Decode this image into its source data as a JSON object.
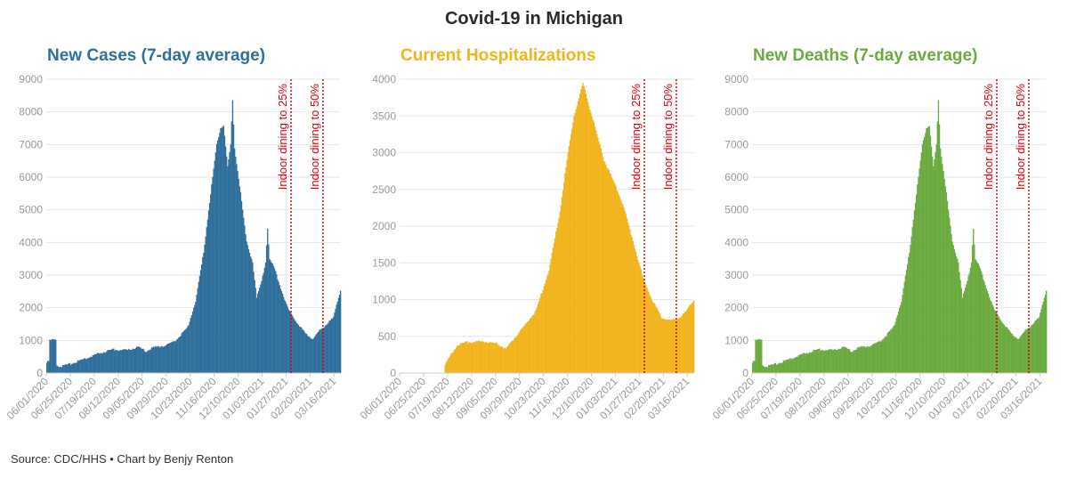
{
  "title": "Covid-19 in Michigan",
  "source": "Source: CDC/HHS • Chart by Benjy Renton",
  "x_ticks": [
    "06/01/2020",
    "06/25/2020",
    "07/19/2020",
    "08/12/2020",
    "09/05/2020",
    "09/29/2020",
    "10/23/2020",
    "11/16/2020",
    "12/10/2020",
    "01/03/2021",
    "01/27/2021",
    "02/20/2021",
    "03/16/2021"
  ],
  "annotations": [
    {
      "label": "Indoor dining to 25%",
      "date": "02/01/2021"
    },
    {
      "label": "Indoor dining to 50%",
      "date": "03/05/2021"
    }
  ],
  "colors": {
    "cases": "#2f6f9c",
    "hosp": "#f2b41d",
    "deaths": "#6aaa3f",
    "annotation": "#e0000b"
  },
  "chart_data": [
    {
      "type": "bar",
      "title": "New Cases (7-day average)",
      "ylim": [
        0,
        9000
      ],
      "yticks": [
        0,
        1000,
        2000,
        3000,
        4000,
        5000,
        6000,
        7000,
        8000,
        9000
      ],
      "x_start": "06/01/2020",
      "x_end": "03/22/2021",
      "grid": true,
      "keypoints": [
        [
          "06/01/2020",
          350
        ],
        [
          "06/03/2020",
          350
        ],
        [
          "06/04/2020",
          1000
        ],
        [
          "06/10/2020",
          1030
        ],
        [
          "06/11/2020",
          250
        ],
        [
          "06/15/2020",
          200
        ],
        [
          "06/25/2020",
          280
        ],
        [
          "07/10/2020",
          450
        ],
        [
          "07/25/2020",
          620
        ],
        [
          "08/05/2020",
          720
        ],
        [
          "08/20/2020",
          700
        ],
        [
          "09/01/2020",
          800
        ],
        [
          "09/08/2020",
          650
        ],
        [
          "09/15/2020",
          780
        ],
        [
          "09/29/2020",
          850
        ],
        [
          "10/08/2020",
          1000
        ],
        [
          "10/20/2020",
          1400
        ],
        [
          "10/28/2020",
          2200
        ],
        [
          "11/05/2020",
          3700
        ],
        [
          "11/12/2020",
          5500
        ],
        [
          "11/18/2020",
          7000
        ],
        [
          "11/22/2020",
          7500
        ],
        [
          "11/25/2020",
          7600
        ],
        [
          "11/29/2020",
          6300
        ],
        [
          "12/02/2020",
          7000
        ],
        [
          "12/04/2020",
          8350
        ],
        [
          "12/06/2020",
          6900
        ],
        [
          "12/12/2020",
          5500
        ],
        [
          "12/18/2020",
          4000
        ],
        [
          "12/24/2020",
          3400
        ],
        [
          "12/28/2020",
          2300
        ],
        [
          "01/02/2021",
          2800
        ],
        [
          "01/06/2021",
          3400
        ],
        [
          "01/08/2021",
          4450
        ],
        [
          "01/10/2021",
          3500
        ],
        [
          "01/15/2021",
          3200
        ],
        [
          "01/20/2021",
          2700
        ],
        [
          "01/28/2021",
          2000
        ],
        [
          "02/05/2021",
          1600
        ],
        [
          "02/15/2021",
          1200
        ],
        [
          "02/22/2021",
          1050
        ],
        [
          "03/01/2021",
          1300
        ],
        [
          "03/08/2021",
          1500
        ],
        [
          "03/15/2021",
          1700
        ],
        [
          "03/22/2021",
          2550
        ]
      ]
    },
    {
      "type": "bar",
      "title": "Current Hospitalizations",
      "ylim": [
        0,
        4000
      ],
      "yticks": [
        0,
        500,
        1000,
        1500,
        2000,
        2500,
        3000,
        3500,
        4000
      ],
      "x_start": "06/01/2020",
      "x_end": "03/22/2021",
      "grid": true,
      "keypoints": [
        [
          "07/15/2020",
          0
        ],
        [
          "07/16/2020",
          120
        ],
        [
          "07/22/2020",
          250
        ],
        [
          "07/28/2020",
          380
        ],
        [
          "08/05/2020",
          420
        ],
        [
          "08/25/2020",
          430
        ],
        [
          "09/05/2020",
          400
        ],
        [
          "09/15/2020",
          330
        ],
        [
          "09/20/2020",
          420
        ],
        [
          "10/01/2020",
          600
        ],
        [
          "10/15/2020",
          850
        ],
        [
          "10/28/2020",
          1400
        ],
        [
          "11/08/2020",
          2200
        ],
        [
          "11/16/2020",
          3000
        ],
        [
          "11/22/2020",
          3500
        ],
        [
          "11/28/2020",
          3800
        ],
        [
          "12/01/2020",
          3950
        ],
        [
          "12/06/2020",
          3700
        ],
        [
          "12/14/2020",
          3300
        ],
        [
          "12/22/2020",
          2900
        ],
        [
          "01/01/2021",
          2600
        ],
        [
          "01/10/2021",
          2300
        ],
        [
          "01/20/2021",
          1800
        ],
        [
          "01/30/2021",
          1300
        ],
        [
          "02/08/2021",
          1000
        ],
        [
          "02/18/2021",
          750
        ],
        [
          "02/28/2021",
          720
        ],
        [
          "03/08/2021",
          760
        ],
        [
          "03/15/2021",
          850
        ],
        [
          "03/22/2021",
          1000
        ]
      ]
    },
    {
      "type": "bar",
      "title": "New Deaths (7-day average)",
      "ylim": [
        0,
        9000
      ],
      "yticks": [
        0,
        1000,
        2000,
        3000,
        4000,
        5000,
        6000,
        7000,
        8000,
        9000
      ],
      "x_start": "06/01/2020",
      "x_end": "03/22/2021",
      "grid": true,
      "keypoints": [
        [
          "06/01/2020",
          350
        ],
        [
          "06/03/2020",
          350
        ],
        [
          "06/04/2020",
          1000
        ],
        [
          "06/10/2020",
          1030
        ],
        [
          "06/11/2020",
          250
        ],
        [
          "06/15/2020",
          200
        ],
        [
          "06/25/2020",
          280
        ],
        [
          "07/10/2020",
          450
        ],
        [
          "07/25/2020",
          620
        ],
        [
          "08/05/2020",
          720
        ],
        [
          "08/20/2020",
          700
        ],
        [
          "09/01/2020",
          800
        ],
        [
          "09/08/2020",
          650
        ],
        [
          "09/15/2020",
          780
        ],
        [
          "09/29/2020",
          850
        ],
        [
          "10/08/2020",
          1000
        ],
        [
          "10/20/2020",
          1400
        ],
        [
          "10/28/2020",
          2200
        ],
        [
          "11/05/2020",
          3700
        ],
        [
          "11/12/2020",
          5500
        ],
        [
          "11/18/2020",
          7000
        ],
        [
          "11/22/2020",
          7500
        ],
        [
          "11/25/2020",
          7600
        ],
        [
          "11/29/2020",
          6300
        ],
        [
          "12/02/2020",
          7000
        ],
        [
          "12/04/2020",
          8350
        ],
        [
          "12/06/2020",
          6900
        ],
        [
          "12/12/2020",
          5500
        ],
        [
          "12/18/2020",
          4000
        ],
        [
          "12/24/2020",
          3400
        ],
        [
          "12/28/2020",
          2300
        ],
        [
          "01/02/2021",
          2800
        ],
        [
          "01/06/2021",
          3400
        ],
        [
          "01/08/2021",
          4450
        ],
        [
          "01/10/2021",
          3500
        ],
        [
          "01/15/2021",
          3200
        ],
        [
          "01/20/2021",
          2700
        ],
        [
          "01/28/2021",
          2000
        ],
        [
          "02/05/2021",
          1600
        ],
        [
          "02/15/2021",
          1200
        ],
        [
          "02/22/2021",
          1050
        ],
        [
          "03/01/2021",
          1300
        ],
        [
          "03/08/2021",
          1500
        ],
        [
          "03/15/2021",
          1700
        ],
        [
          "03/22/2021",
          2550
        ]
      ]
    }
  ]
}
